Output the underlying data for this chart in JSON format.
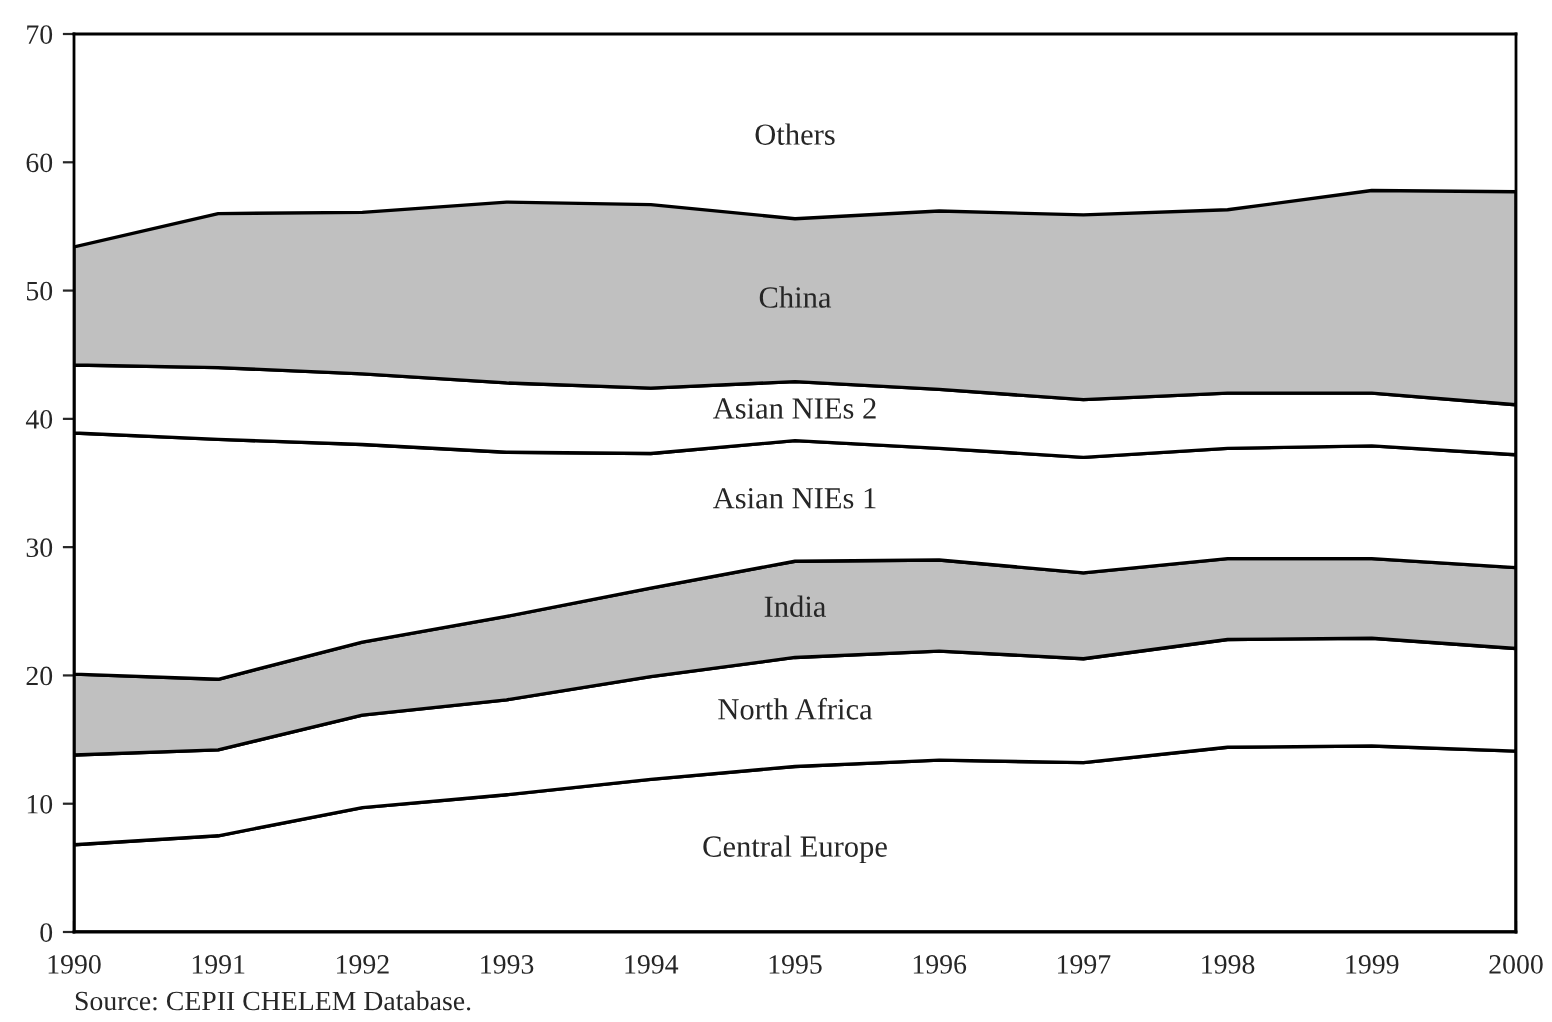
{
  "chart_data": {
    "type": "area",
    "stacked": true,
    "x": [
      1990,
      1991,
      1992,
      1993,
      1994,
      1995,
      1996,
      1997,
      1998,
      1999,
      2000
    ],
    "series": [
      {
        "name": "Central Europe",
        "color": "#ffffff",
        "values": [
          6.8,
          7.5,
          9.7,
          10.7,
          11.9,
          12.9,
          13.4,
          13.2,
          14.4,
          14.5,
          14.1
        ]
      },
      {
        "name": "North Africa",
        "color": "#ffffff",
        "values": [
          7.0,
          6.7,
          7.2,
          7.4,
          8.0,
          8.5,
          8.5,
          8.1,
          8.4,
          8.4,
          8.0
        ]
      },
      {
        "name": "India",
        "color": "#c0c0c0",
        "values": [
          6.3,
          5.5,
          5.7,
          6.5,
          6.9,
          7.5,
          7.1,
          6.7,
          6.3,
          6.2,
          6.3
        ]
      },
      {
        "name": "Asian NIEs 1",
        "color": "#ffffff",
        "values": [
          18.8,
          18.7,
          15.4,
          12.8,
          10.5,
          9.4,
          8.7,
          9.0,
          8.6,
          8.8,
          8.8
        ]
      },
      {
        "name": "Asian NIEs 2",
        "color": "#ffffff",
        "values": [
          5.3,
          5.6,
          5.5,
          5.4,
          5.1,
          4.6,
          4.6,
          4.5,
          4.3,
          4.1,
          3.9
        ]
      },
      {
        "name": "China",
        "color": "#c0c0c0",
        "values": [
          9.2,
          12.0,
          12.6,
          14.1,
          14.3,
          12.7,
          13.9,
          14.4,
          14.3,
          15.8,
          16.6
        ]
      }
    ],
    "annotations": [
      "Others",
      "Source: CEPII CHELEM Database."
    ],
    "xlim": [
      1990,
      2000
    ],
    "xticks": [
      1990,
      1991,
      1992,
      1993,
      1994,
      1995,
      1996,
      1997,
      1998,
      1999,
      2000
    ],
    "ylim": [
      0,
      70
    ],
    "yticks": [
      0,
      10,
      20,
      30,
      40,
      50,
      60,
      70
    ],
    "grid": false
  }
}
